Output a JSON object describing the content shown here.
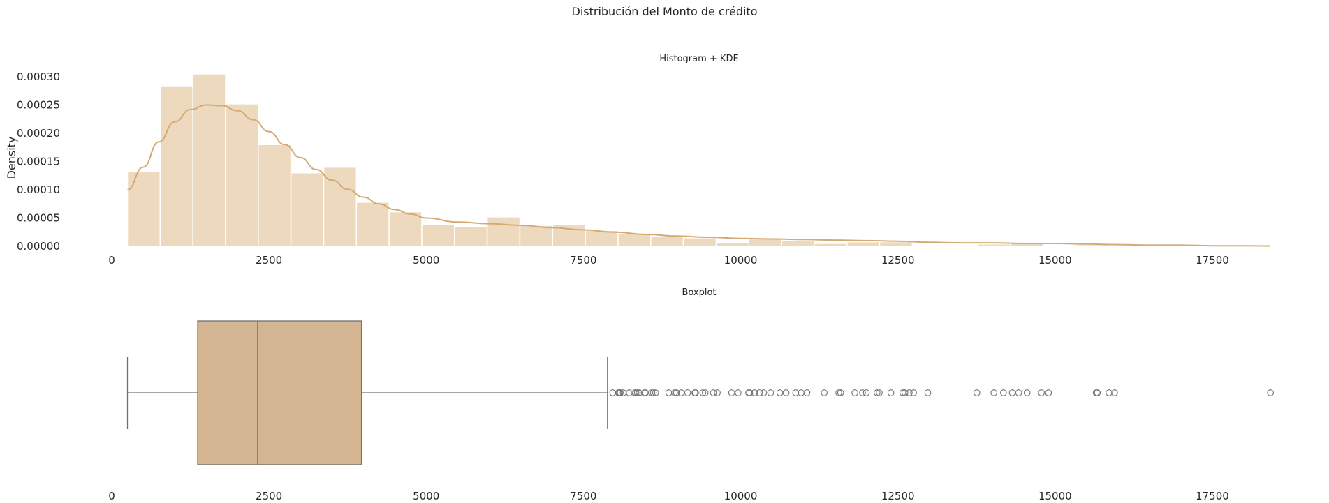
{
  "figure": {
    "suptitle": "Distribución del Monto de crédito"
  },
  "chart_data": [
    {
      "type": "bar",
      "subtype": "histogram+kde",
      "title": "Histogram + KDE",
      "xlabel": "",
      "ylabel": "Density",
      "xlim": [
        0,
        18600
      ],
      "ylim": [
        0,
        0.000305
      ],
      "xticks": [
        0,
        2500,
        5000,
        7500,
        10000,
        12500,
        15000,
        17500
      ],
      "xtick_labels": [
        "0",
        "2500",
        "5000",
        "7500",
        "10000",
        "12500",
        "15000",
        "17500"
      ],
      "yticks": [
        0,
        5e-05,
        0.0001,
        0.00015,
        0.0002,
        0.00025,
        0.0003
      ],
      "ytick_labels": [
        "0.00000",
        "0.00005",
        "0.00010",
        "0.00015",
        "0.00020",
        "0.00025",
        "0.00030"
      ],
      "grid": false,
      "color": "#dbb47e",
      "bin_width": 520,
      "bins": [
        {
          "x0": 250,
          "density": 0.000133
        },
        {
          "x0": 770,
          "density": 0.000284
        },
        {
          "x0": 1290,
          "density": 0.000305
        },
        {
          "x0": 1810,
          "density": 0.000252
        },
        {
          "x0": 2330,
          "density": 0.00018
        },
        {
          "x0": 2850,
          "density": 0.00013
        },
        {
          "x0": 3370,
          "density": 0.00014
        },
        {
          "x0": 3890,
          "density": 7.8e-05
        },
        {
          "x0": 4410,
          "density": 6.1e-05
        },
        {
          "x0": 4930,
          "density": 3.8e-05
        },
        {
          "x0": 5450,
          "density": 3.5e-05
        },
        {
          "x0": 5970,
          "density": 5.2e-05
        },
        {
          "x0": 6490,
          "density": 3.7e-05
        },
        {
          "x0": 7010,
          "density": 3.8e-05
        },
        {
          "x0": 7530,
          "density": 2.8e-05
        },
        {
          "x0": 8050,
          "density": 2.2e-05
        },
        {
          "x0": 8570,
          "density": 1.7e-05
        },
        {
          "x0": 9090,
          "density": 1.5e-05
        },
        {
          "x0": 9610,
          "density": 6e-06
        },
        {
          "x0": 10130,
          "density": 1.3e-05
        },
        {
          "x0": 10650,
          "density": 1e-05
        },
        {
          "x0": 11170,
          "density": 5e-06
        },
        {
          "x0": 11690,
          "density": 8e-06
        },
        {
          "x0": 12210,
          "density": 8e-06
        },
        {
          "x0": 12730,
          "density": 0.0
        },
        {
          "x0": 13250,
          "density": 0.0
        },
        {
          "x0": 13770,
          "density": 4e-06
        },
        {
          "x0": 14290,
          "density": 5e-06
        },
        {
          "x0": 14810,
          "density": 1e-06
        },
        {
          "x0": 15330,
          "density": 3e-06
        },
        {
          "x0": 15850,
          "density": 1e-06
        },
        {
          "x0": 16370,
          "density": 0.0
        },
        {
          "x0": 16890,
          "density": 0.0
        },
        {
          "x0": 17410,
          "density": 0.0
        },
        {
          "x0": 17930,
          "density": 1e-06
        }
      ],
      "kde": {
        "x": [
          250,
          500,
          750,
          1000,
          1250,
          1500,
          1750,
          2000,
          2250,
          2500,
          2750,
          3000,
          3250,
          3500,
          3750,
          4000,
          4250,
          4500,
          4750,
          5000,
          5500,
          6000,
          6500,
          7000,
          7500,
          8000,
          8500,
          9000,
          9500,
          10000,
          10500,
          11000,
          11500,
          12000,
          12500,
          13000,
          13500,
          14000,
          14500,
          15000,
          15500,
          16000,
          16500,
          17000,
          17500,
          18000,
          18420
        ],
        "y": [
          0.0001,
          0.00014,
          0.000185,
          0.00022,
          0.000242,
          0.00025,
          0.000249,
          0.00024,
          0.000224,
          0.000203,
          0.00018,
          0.000157,
          0.000136,
          0.000117,
          0.000101,
          8.7e-05,
          7.5e-05,
          6.5e-05,
          5.7e-05,
          5e-05,
          4.3e-05,
          4e-05,
          3.7e-05,
          3.3e-05,
          2.9e-05,
          2.5e-05,
          2.1e-05,
          1.8e-05,
          1.6e-05,
          1.4e-05,
          1.3e-05,
          1.2e-05,
          1.1e-05,
          1e-05,
          9e-06,
          7e-06,
          6e-06,
          6e-06,
          5e-06,
          5e-06,
          4e-06,
          3e-06,
          2e-06,
          2e-06,
          1e-06,
          1e-06,
          5e-07
        ]
      }
    },
    {
      "type": "scatter",
      "subtype": "boxplot",
      "title": "Boxplot",
      "xlabel": "",
      "ylabel": "",
      "xlim": [
        0,
        18600
      ],
      "xticks": [
        0,
        2500,
        5000,
        7500,
        10000,
        12500,
        15000,
        17500
      ],
      "xtick_labels": [
        "0",
        "2500",
        "5000",
        "7500",
        "10000",
        "12500",
        "15000",
        "17500"
      ],
      "grid": false,
      "box_color": "#d4b592",
      "line_color": "#707070",
      "stats": {
        "whisker_low": 250,
        "q1": 1366,
        "median": 2320,
        "q3": 3972,
        "whisker_high": 7882
      },
      "outliers": [
        7966,
        8058,
        8072,
        8086,
        8133,
        8229,
        8318,
        8335,
        8358,
        8386,
        8471,
        8487,
        8588,
        8613,
        8648,
        8858,
        8947,
        8978,
        9055,
        9157,
        9271,
        9283,
        9398,
        9436,
        9566,
        9629,
        9857,
        9960,
        10127,
        10144,
        10222,
        10297,
        10366,
        10477,
        10623,
        10722,
        10875,
        10961,
        11054,
        11328,
        11560,
        11590,
        11816,
        11938,
        11998,
        12169,
        12204,
        12389,
        12579,
        12612,
        12680,
        12749,
        12976,
        13756,
        14027,
        14179,
        14318,
        14421,
        14555,
        14782,
        14896,
        15653,
        15672,
        15857,
        15945,
        18424
      ]
    }
  ]
}
